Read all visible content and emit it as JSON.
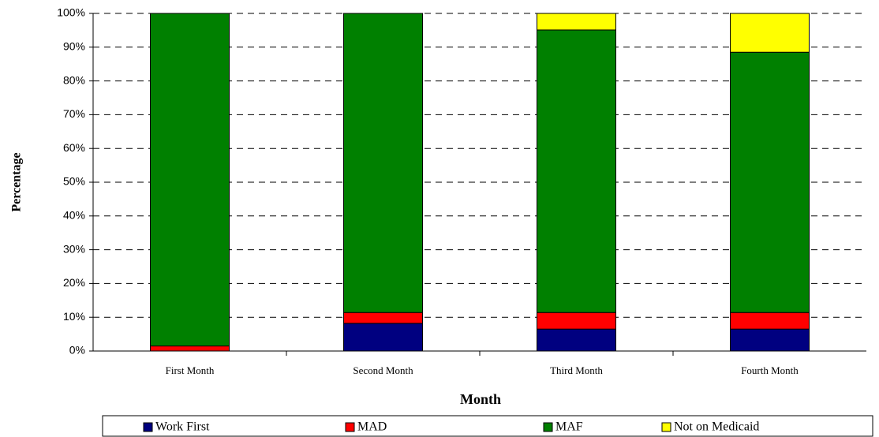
{
  "chart_data": {
    "type": "stacked-bar",
    "y_label": "Percentage",
    "x_label": "Month",
    "categories": [
      "First Month",
      "Second Month",
      "Third Month",
      "Fourth Month"
    ],
    "series": [
      {
        "name": "Work First",
        "color": "#000080",
        "values": [
          0,
          8.2,
          6.5,
          6.5
        ]
      },
      {
        "name": "MAD",
        "color": "#ff0000",
        "values": [
          1.5,
          3.2,
          4.9,
          4.9
        ]
      },
      {
        "name": "MAF",
        "color": "#008000",
        "values": [
          98.5,
          88.6,
          83.7,
          77.1
        ]
      },
      {
        "name": "Not on Medicaid",
        "color": "#ffff00",
        "values": [
          0,
          0,
          4.9,
          11.5
        ]
      }
    ],
    "ylim": [
      0,
      100
    ],
    "yticks": [
      {
        "value": 0,
        "label": "0%"
      },
      {
        "value": 10,
        "label": "10%"
      },
      {
        "value": 20,
        "label": "20%"
      },
      {
        "value": 30,
        "label": "30%"
      },
      {
        "value": 40,
        "label": "40%"
      },
      {
        "value": 50,
        "label": "50%"
      },
      {
        "value": 60,
        "label": "60%"
      },
      {
        "value": 70,
        "label": "70%"
      },
      {
        "value": 80,
        "label": "80%"
      },
      {
        "value": 90,
        "label": "90%"
      },
      {
        "value": 100,
        "label": "100%"
      }
    ],
    "grid": true,
    "legend": "bottom"
  }
}
